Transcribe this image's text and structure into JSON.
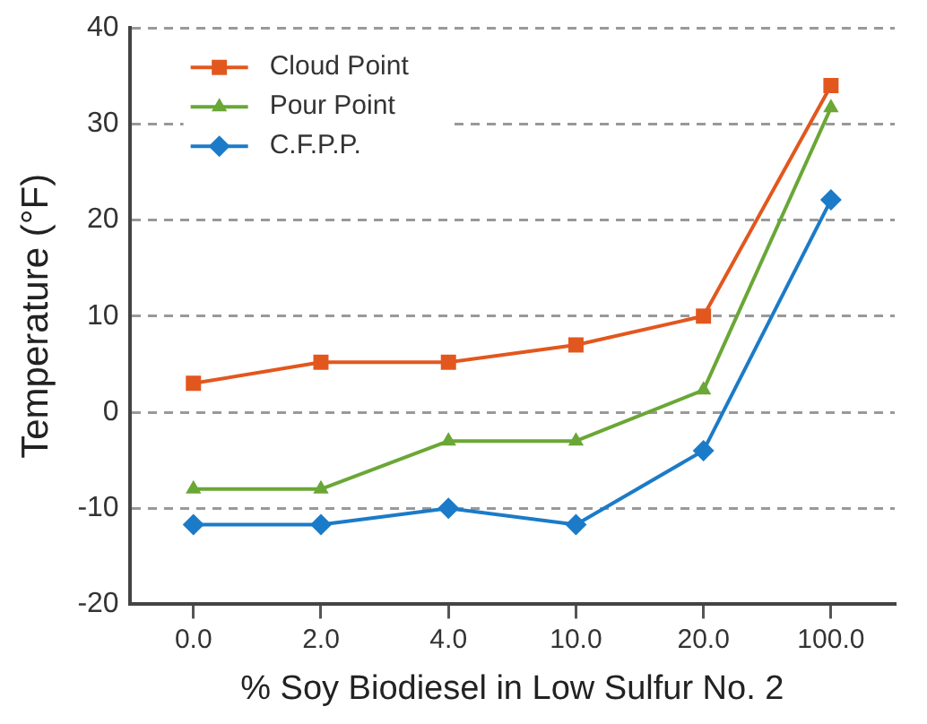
{
  "chart_data": {
    "type": "line",
    "xlabel": "% Soy Biodiesel in Low Sulfur No. 2",
    "ylabel": "Temperature (°F)",
    "categories": [
      "0.0",
      "2.0",
      "4.0",
      "10.0",
      "20.0",
      "100.0"
    ],
    "series": [
      {
        "name": "Cloud Point",
        "color": "#e2571e",
        "marker": "square",
        "values": [
          3,
          5.2,
          5.2,
          7,
          10,
          34
        ]
      },
      {
        "name": "Pour Point",
        "color": "#6aa736",
        "marker": "triangle",
        "values": [
          -8,
          -8,
          -3,
          -3,
          2.3,
          31.7
        ]
      },
      {
        "name": "C.F.P.P.",
        "color": "#1b7bc8",
        "marker": "diamond",
        "values": [
          -11.7,
          -11.7,
          -10,
          -11.7,
          -4,
          22.1
        ]
      }
    ],
    "ylim": [
      -20,
      40
    ],
    "yticks": [
      -20,
      -10,
      0,
      10,
      20,
      30,
      40
    ],
    "grid": "y",
    "legend": "top left",
    "line_style": "solid"
  }
}
